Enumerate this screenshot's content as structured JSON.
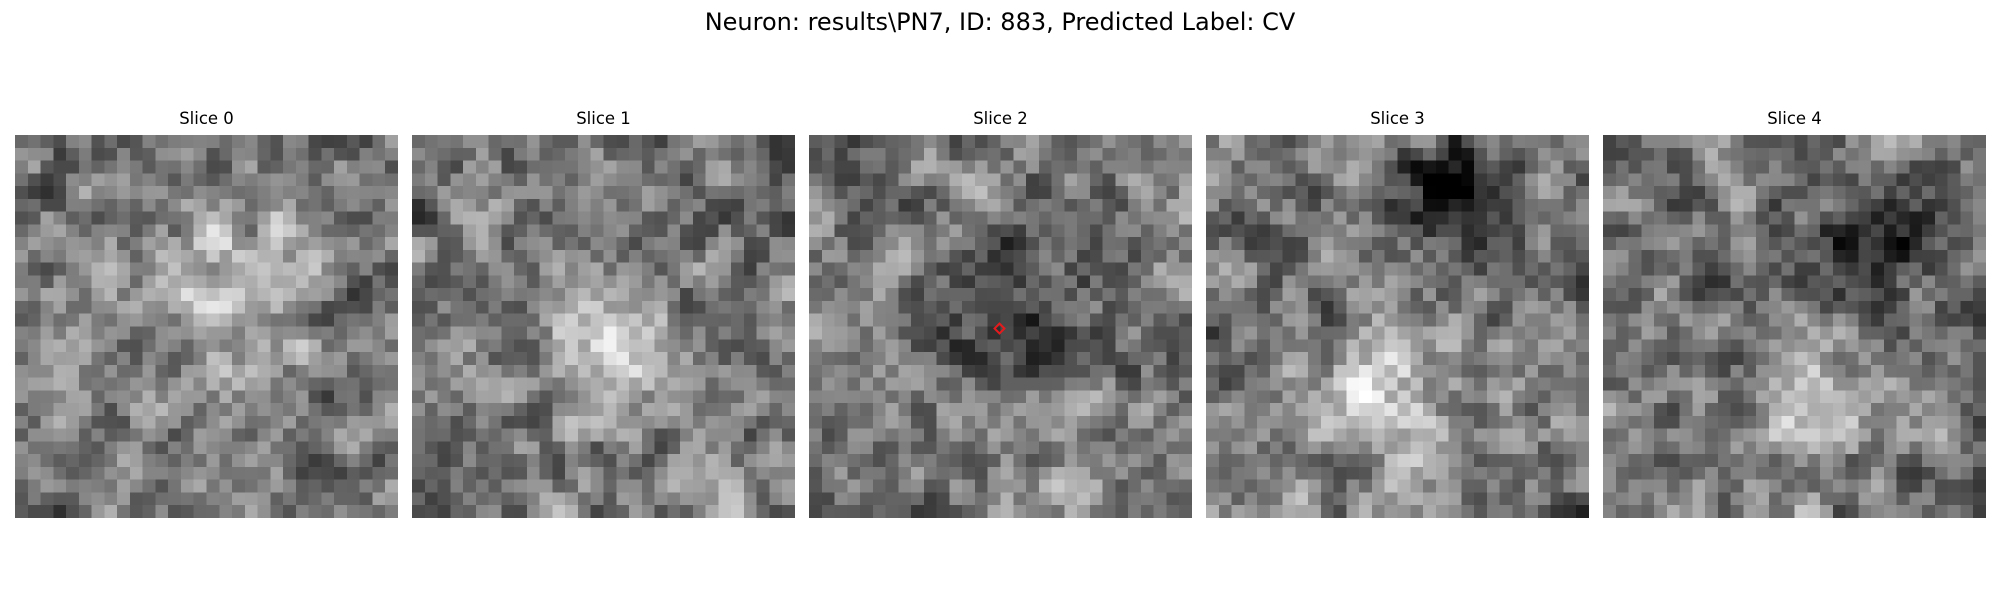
{
  "figure": {
    "title": "Neuron: results\\PN7, ID: 883, Predicted Label: CV"
  },
  "colors": {
    "background": "#ffffff",
    "marker": "#e41a1c"
  },
  "panels": [
    {
      "title": "Slice 0",
      "seed": 11,
      "bright_blob": [
        0.55,
        0.38
      ],
      "dark_blob": null
    },
    {
      "title": "Slice 1",
      "seed": 23,
      "bright_blob": [
        0.55,
        0.55
      ],
      "dark_blob": null
    },
    {
      "title": "Slice 2",
      "seed": 37,
      "bright_blob": null,
      "dark_blob": [
        0.55,
        0.45
      ],
      "marker": true
    },
    {
      "title": "Slice 3",
      "seed": 41,
      "bright_blob": [
        0.45,
        0.7
      ],
      "dark_blob": [
        0.65,
        0.15
      ]
    },
    {
      "title": "Slice 4",
      "seed": 59,
      "bright_blob": [
        0.55,
        0.7
      ],
      "dark_blob": [
        0.7,
        0.3
      ]
    }
  ]
}
